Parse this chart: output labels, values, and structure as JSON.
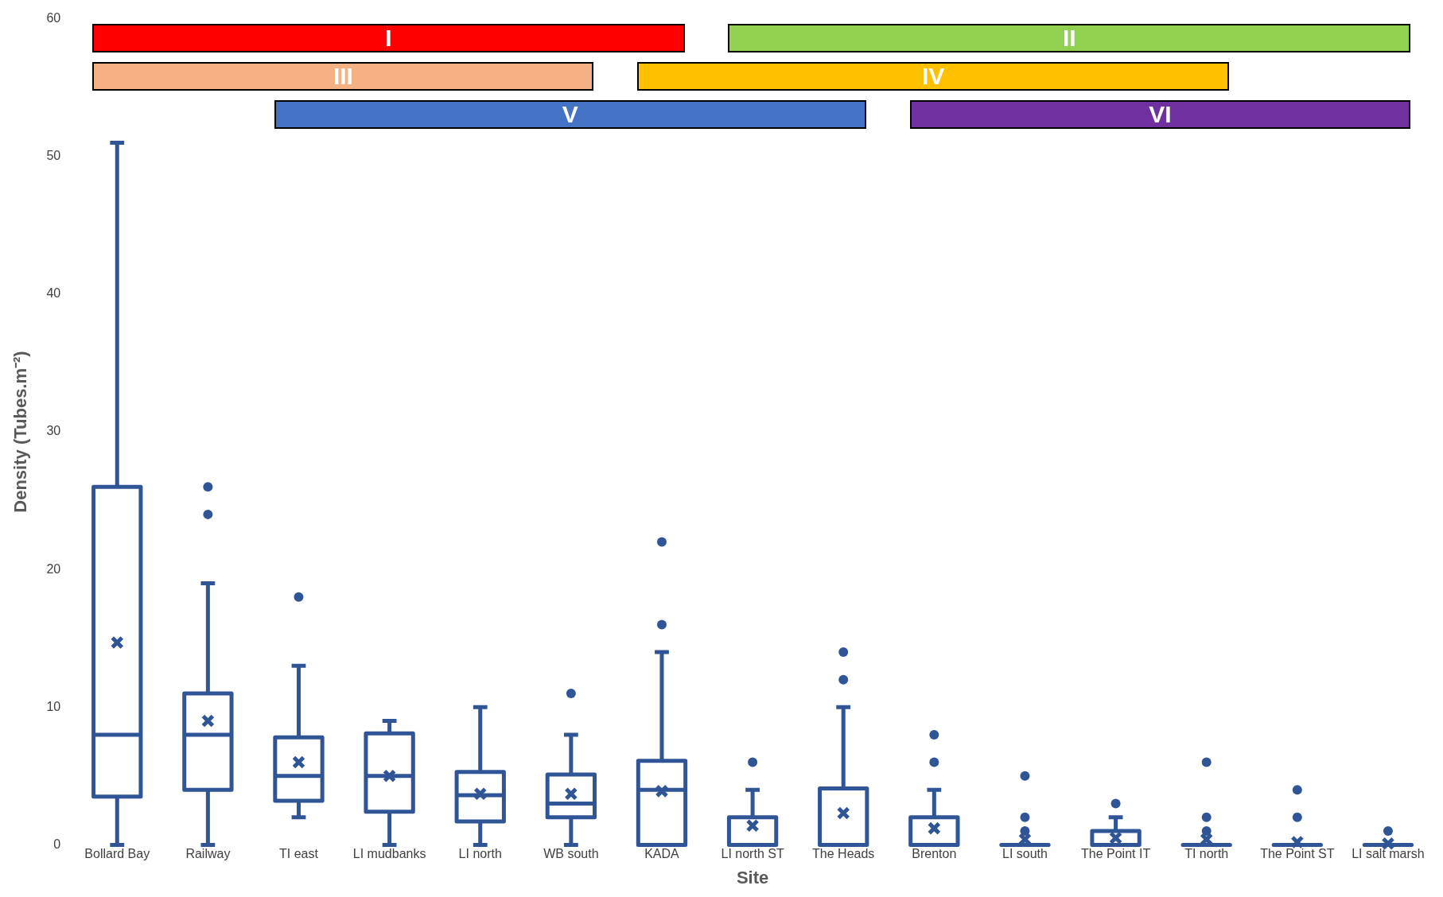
{
  "chart_data": {
    "type": "box",
    "xlabel": "Site",
    "ylabel": "Density (Tubes.m⁻²)",
    "categories": [
      "Bollard Bay",
      "Railway",
      "TI east",
      "LI mudbanks",
      "LI north",
      "WB south",
      "KADA",
      "LI north ST",
      "The Heads",
      "Brenton",
      "LI south",
      "The Point IT",
      "TI north",
      "The Point ST",
      "LI salt marsh"
    ],
    "color": "#2f5597",
    "boxes": [
      {
        "low": 0,
        "q1": 3.5,
        "median": 8,
        "q3": 26,
        "high": 51,
        "mean": 14.7
      },
      {
        "low": 0,
        "q1": 4,
        "median": 8,
        "q3": 11,
        "high": 19,
        "mean": 9,
        "outliers": [
          24,
          26
        ]
      },
      {
        "low": 2,
        "q1": 3.2,
        "median": 5,
        "q3": 7.8,
        "high": 13,
        "mean": 6,
        "outliers": [
          18
        ]
      },
      {
        "low": 0,
        "q1": 2.4,
        "median": 5,
        "q3": 8.1,
        "high": 9,
        "mean": 5
      },
      {
        "low": 0,
        "q1": 1.7,
        "median": 3.6,
        "q3": 5.3,
        "high": 10,
        "mean": 3.7
      },
      {
        "low": 0,
        "q1": 2,
        "median": 3,
        "q3": 5.1,
        "high": 8,
        "mean": 3.7,
        "outliers": [
          11
        ]
      },
      {
        "low": 0,
        "q1": 0,
        "median": 4,
        "q3": 6.1,
        "high": 14,
        "mean": 3.9,
        "outliers": [
          16,
          22
        ]
      },
      {
        "low": 0,
        "q1": 0,
        "median": 0,
        "q3": 2,
        "high": 4,
        "mean": 1.4,
        "outliers": [
          6
        ]
      },
      {
        "low": 0,
        "q1": 0,
        "median": 0,
        "q3": 4.1,
        "high": 10,
        "mean": 2.3,
        "outliers": [
          12,
          14
        ]
      },
      {
        "low": 0,
        "q1": 0,
        "median": 0,
        "q3": 2,
        "high": 4,
        "mean": 1.2,
        "outliers": [
          6,
          8
        ]
      },
      {
        "low": 0,
        "q1": 0,
        "median": 0,
        "q3": 0,
        "high": 0,
        "mean": 0.4,
        "outliers": [
          1,
          2,
          5
        ]
      },
      {
        "low": 0,
        "q1": 0,
        "median": 0,
        "q3": 1,
        "high": 2,
        "mean": 0.5,
        "outliers": [
          3
        ]
      },
      {
        "low": 0,
        "q1": 0,
        "median": 0,
        "q3": 0,
        "high": 0,
        "mean": 0.4,
        "outliers": [
          1,
          2,
          6
        ]
      },
      {
        "low": 0,
        "q1": 0,
        "median": 0,
        "q3": 0,
        "high": 0,
        "mean": 0.2,
        "outliers": [
          2,
          4
        ]
      },
      {
        "low": 0,
        "q1": 0,
        "median": 0,
        "q3": 0,
        "high": 0,
        "mean": 0.1,
        "outliers": [
          1
        ]
      }
    ],
    "annotations": [
      "I",
      "II",
      "III",
      "IV",
      "V",
      "VI"
    ],
    "ylim": [
      0,
      60
    ],
    "yticks": [
      0,
      10,
      20,
      30,
      40,
      50,
      60
    ],
    "grid": false,
    "legend": false,
    "marker": "circle"
  }
}
